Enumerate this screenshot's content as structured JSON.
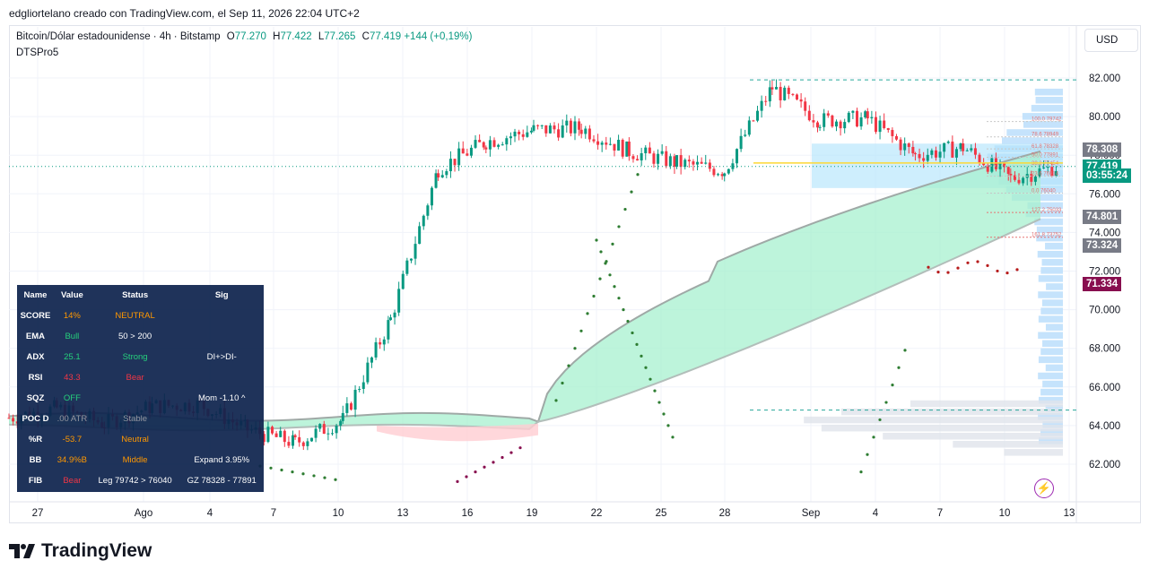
{
  "header": {
    "credit": "edgliortelano creado con TradingView.com, el Sep 11, 2026 22:04 UTC+2",
    "symbol": "Bitcoin/Dólar estadounidense · 4h · Bitstamp",
    "o_label": "O",
    "o_value": "77.270",
    "h_label": "H",
    "h_value": "77.422",
    "l_label": "L",
    "l_value": "77.265",
    "c_label": "C",
    "c_value": "77.419",
    "change": "+144 (+0,19%)",
    "indicator": "DTSPro5",
    "currency": "USD"
  },
  "price_tags": [
    {
      "text": "78.308",
      "color": "#787b86",
      "value": 78.308
    },
    {
      "text": "77.419",
      "color": "#089981",
      "value": 77.419
    },
    {
      "text": "03:55:24",
      "color": "#089981",
      "value": 76.95
    },
    {
      "text": "74.801",
      "color": "#787b86",
      "value": 74.801
    },
    {
      "text": "73.324",
      "color": "#787b86",
      "value": 73.324
    },
    {
      "text": "71.334",
      "color": "#880e4f",
      "value": 71.334
    }
  ],
  "fib_labels": [
    "100.0  79742",
    "78.6  78949",
    "61.8  78328",
    "50.0  77891",
    "38.2  77454",
    "23.6  76914",
    "0.0  76040",
    "127.2  75033",
    "161.8  73752"
  ],
  "table": {
    "headers": [
      "Name",
      "Value",
      "Status",
      "Sig"
    ],
    "rows": [
      {
        "name": "SCORE",
        "value": "14%",
        "value_color": "#ff9800",
        "status": "NEUTRAL",
        "status_color": "#ff9800",
        "sig": ""
      },
      {
        "name": "EMA",
        "value": "Bull",
        "value_color": "#26d07c",
        "status": "50 > 200",
        "status_color": "#ffffff",
        "sig": ""
      },
      {
        "name": "ADX",
        "value": "25.1",
        "value_color": "#26d07c",
        "status": "Strong",
        "status_color": "#26d07c",
        "sig": "DI+>DI-"
      },
      {
        "name": "RSI",
        "value": "43.3",
        "value_color": "#f23645",
        "status": "Bear",
        "status_color": "#f23645",
        "sig": ""
      },
      {
        "name": "SQZ",
        "value": "OFF",
        "value_color": "#26d07c",
        "status": "",
        "status_color": "#ffffff",
        "sig": "Mom -1.10 ^"
      },
      {
        "name": "POC D",
        "value": ".00 ATR",
        "value_color": "#9598a1",
        "status": "Stable",
        "status_color": "#9598a1",
        "sig": ""
      },
      {
        "name": "%R",
        "value": "-53.7",
        "value_color": "#ff9800",
        "status": "Neutral",
        "status_color": "#ff9800",
        "sig": ""
      },
      {
        "name": "BB",
        "value": "34.9%B",
        "value_color": "#ff9800",
        "status": "Middle",
        "status_color": "#ff9800",
        "sig": "Expand 3.95%"
      },
      {
        "name": "FIB",
        "value": "Bear",
        "value_color": "#f23645",
        "status": "Leg 79742 > 76040",
        "status_color": "#ffffff",
        "sig": "GZ 78328 - 77891"
      }
    ]
  },
  "brand": "TradingView",
  "chart_data": {
    "type": "line",
    "title": "Bitcoin/Dólar estadounidense · 4h · Bitstamp",
    "series_type": "candlestick",
    "y_axis": {
      "ticks": [
        "82.000",
        "80.000",
        "78.000",
        "76.000",
        "74.000",
        "72.000",
        "70.000",
        "68.000",
        "66.000",
        "64.000",
        "62.000"
      ],
      "ylim": [
        60.6,
        82.6
      ],
      "unit": "USD thousands"
    },
    "x_axis": {
      "ticks": [
        "27",
        "Ago",
        "4",
        "7",
        "10",
        "13",
        "16",
        "19",
        "22",
        "25",
        "28",
        "Sep",
        "4",
        "7",
        "10",
        "13"
      ]
    },
    "close_path": [
      {
        "x": "27",
        "y": 64.4
      },
      {
        "x": "Ago",
        "y": 64.9
      },
      {
        "x": "4",
        "y": 64.1
      },
      {
        "x": "7",
        "y": 65.0
      },
      {
        "x": "10",
        "y": 65.1
      },
      {
        "x": "13",
        "y": 63.8
      },
      {
        "x": "16",
        "y": 63.1
      },
      {
        "x": "19",
        "y": 64.3
      },
      {
        "x": "20",
        "y": 69.5
      },
      {
        "x": "22",
        "y": 77.3
      },
      {
        "x": "24",
        "y": 78.7
      },
      {
        "x": "25",
        "y": 79.3
      },
      {
        "x": "28",
        "y": 79.4
      },
      {
        "x": "30",
        "y": 78.2
      },
      {
        "x": "Sep",
        "y": 77.6
      },
      {
        "x": "3",
        "y": 77.2
      },
      {
        "x": "4",
        "y": 81.5
      },
      {
        "x": "5",
        "y": 79.8
      },
      {
        "x": "7",
        "y": 79.9
      },
      {
        "x": "9",
        "y": 78.0
      },
      {
        "x": "10",
        "y": 78.4
      },
      {
        "x": "11",
        "y": 76.8
      },
      {
        "x": "12",
        "y": 77.42
      }
    ],
    "last_price": 77.419
  }
}
